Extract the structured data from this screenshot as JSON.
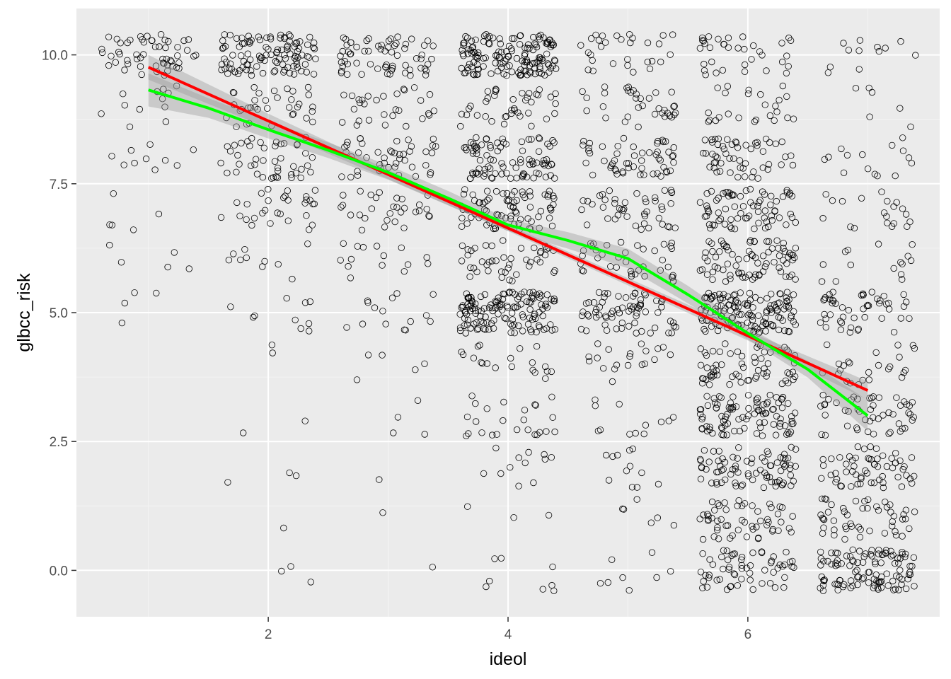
{
  "chart_data": {
    "type": "scatter",
    "title": "",
    "xlabel": "ideol",
    "ylabel": "glbcc_risk",
    "xlim": [
      0.4,
      7.6
    ],
    "ylim": [
      -0.9,
      10.9
    ],
    "x_ticks": [
      2,
      4,
      6
    ],
    "x_tick_labels": [
      "2",
      "4",
      "6"
    ],
    "y_ticks": [
      0,
      2.5,
      5,
      7.5,
      10
    ],
    "y_tick_labels": [
      "0.0",
      "2.5",
      "5.0",
      "7.5",
      "10.0"
    ],
    "grid": true,
    "legend": "none",
    "point_style": "open-circle",
    "jitter": {
      "x": 0.4,
      "y": 0.4
    },
    "colors": {
      "panel": "#ebebeb",
      "grid_major": "#ffffff",
      "grid_minor": "#f4f4f4",
      "points": "#000000",
      "lm_line": "#ff0000",
      "loess_line": "#00ff00",
      "ribbon": "#999999"
    },
    "point_groups": [
      {
        "x": 1,
        "y": 10,
        "count": 55
      },
      {
        "x": 1,
        "y": 9,
        "count": 12
      },
      {
        "x": 1,
        "y": 8,
        "count": 10
      },
      {
        "x": 1,
        "y": 7,
        "count": 5
      },
      {
        "x": 1,
        "y": 6,
        "count": 5
      },
      {
        "x": 1,
        "y": 5,
        "count": 4
      },
      {
        "x": 2,
        "y": 10,
        "count": 110
      },
      {
        "x": 2,
        "y": 9,
        "count": 35
      },
      {
        "x": 2,
        "y": 8,
        "count": 45
      },
      {
        "x": 2,
        "y": 7,
        "count": 30
      },
      {
        "x": 2,
        "y": 6,
        "count": 10
      },
      {
        "x": 2,
        "y": 5,
        "count": 10
      },
      {
        "x": 2,
        "y": 4,
        "count": 2
      },
      {
        "x": 2,
        "y": 3,
        "count": 2
      },
      {
        "x": 2,
        "y": 2,
        "count": 3
      },
      {
        "x": 2,
        "y": 1,
        "count": 1
      },
      {
        "x": 2,
        "y": 0,
        "count": 3
      },
      {
        "x": 3,
        "y": 10,
        "count": 65
      },
      {
        "x": 3,
        "y": 9,
        "count": 30
      },
      {
        "x": 3,
        "y": 8,
        "count": 45
      },
      {
        "x": 3,
        "y": 7,
        "count": 30
      },
      {
        "x": 3,
        "y": 6,
        "count": 15
      },
      {
        "x": 3,
        "y": 5,
        "count": 15
      },
      {
        "x": 3,
        "y": 4,
        "count": 5
      },
      {
        "x": 3,
        "y": 3,
        "count": 4
      },
      {
        "x": 3,
        "y": 2,
        "count": 1
      },
      {
        "x": 3,
        "y": 1,
        "count": 1
      },
      {
        "x": 3,
        "y": 0,
        "count": 1
      },
      {
        "x": 4,
        "y": 10,
        "count": 150
      },
      {
        "x": 4,
        "y": 9,
        "count": 40
      },
      {
        "x": 4,
        "y": 8,
        "count": 90
      },
      {
        "x": 4,
        "y": 7,
        "count": 80
      },
      {
        "x": 4,
        "y": 6,
        "count": 45
      },
      {
        "x": 4,
        "y": 5,
        "count": 140
      },
      {
        "x": 4,
        "y": 4,
        "count": 20
      },
      {
        "x": 4,
        "y": 3,
        "count": 25
      },
      {
        "x": 4,
        "y": 2,
        "count": 12
      },
      {
        "x": 4,
        "y": 1,
        "count": 3
      },
      {
        "x": 4,
        "y": 0,
        "count": 8
      },
      {
        "x": 5,
        "y": 10,
        "count": 30
      },
      {
        "x": 5,
        "y": 9,
        "count": 35
      },
      {
        "x": 5,
        "y": 8,
        "count": 55
      },
      {
        "x": 5,
        "y": 7,
        "count": 45
      },
      {
        "x": 5,
        "y": 6,
        "count": 40
      },
      {
        "x": 5,
        "y": 5,
        "count": 70
      },
      {
        "x": 5,
        "y": 4,
        "count": 20
      },
      {
        "x": 5,
        "y": 3,
        "count": 12
      },
      {
        "x": 5,
        "y": 2,
        "count": 12
      },
      {
        "x": 5,
        "y": 1,
        "count": 6
      },
      {
        "x": 5,
        "y": 0,
        "count": 8
      },
      {
        "x": 6,
        "y": 10,
        "count": 35
      },
      {
        "x": 6,
        "y": 9,
        "count": 25
      },
      {
        "x": 6,
        "y": 8,
        "count": 55
      },
      {
        "x": 6,
        "y": 7,
        "count": 75
      },
      {
        "x": 6,
        "y": 6,
        "count": 80
      },
      {
        "x": 6,
        "y": 5,
        "count": 140
      },
      {
        "x": 6,
        "y": 4,
        "count": 65
      },
      {
        "x": 6,
        "y": 3,
        "count": 95
      },
      {
        "x": 6,
        "y": 2,
        "count": 80
      },
      {
        "x": 6,
        "y": 1,
        "count": 55
      },
      {
        "x": 6,
        "y": 0,
        "count": 60
      },
      {
        "x": 7,
        "y": 10,
        "count": 12
      },
      {
        "x": 7,
        "y": 9,
        "count": 6
      },
      {
        "x": 7,
        "y": 8,
        "count": 15
      },
      {
        "x": 7,
        "y": 7,
        "count": 20
      },
      {
        "x": 7,
        "y": 6,
        "count": 15
      },
      {
        "x": 7,
        "y": 5,
        "count": 50
      },
      {
        "x": 7,
        "y": 4,
        "count": 25
      },
      {
        "x": 7,
        "y": 3,
        "count": 50
      },
      {
        "x": 7,
        "y": 2,
        "count": 60
      },
      {
        "x": 7,
        "y": 1,
        "count": 50
      },
      {
        "x": 7,
        "y": 0,
        "count": 110
      }
    ],
    "series": [
      {
        "type": "lm",
        "color": "#ff0000",
        "x": [
          1,
          2,
          3,
          4,
          5,
          6,
          7
        ],
        "y": [
          9.76,
          8.72,
          7.68,
          6.64,
          5.6,
          4.55,
          3.49
        ],
        "se_lower": [
          9.52,
          8.58,
          7.59,
          6.58,
          5.53,
          4.46,
          3.31
        ],
        "se_upper": [
          10.0,
          8.86,
          7.77,
          6.7,
          5.67,
          4.64,
          3.67
        ]
      },
      {
        "type": "loess",
        "color": "#00ff00",
        "x": [
          1.0,
          1.5,
          2.0,
          2.5,
          3.0,
          3.5,
          4.0,
          4.5,
          5.0,
          5.5,
          6.0,
          6.5,
          7.0
        ],
        "y": [
          9.32,
          8.97,
          8.55,
          8.15,
          7.72,
          7.22,
          6.7,
          6.4,
          6.05,
          5.35,
          4.6,
          3.9,
          3.0
        ],
        "se_lower": [
          9.0,
          8.78,
          8.38,
          8.0,
          7.58,
          7.08,
          6.58,
          6.24,
          5.86,
          5.18,
          4.48,
          3.74,
          2.7
        ],
        "se_upper": [
          9.64,
          9.16,
          8.72,
          8.3,
          7.86,
          7.36,
          6.82,
          6.56,
          6.24,
          5.52,
          4.72,
          4.06,
          3.3
        ]
      }
    ]
  }
}
